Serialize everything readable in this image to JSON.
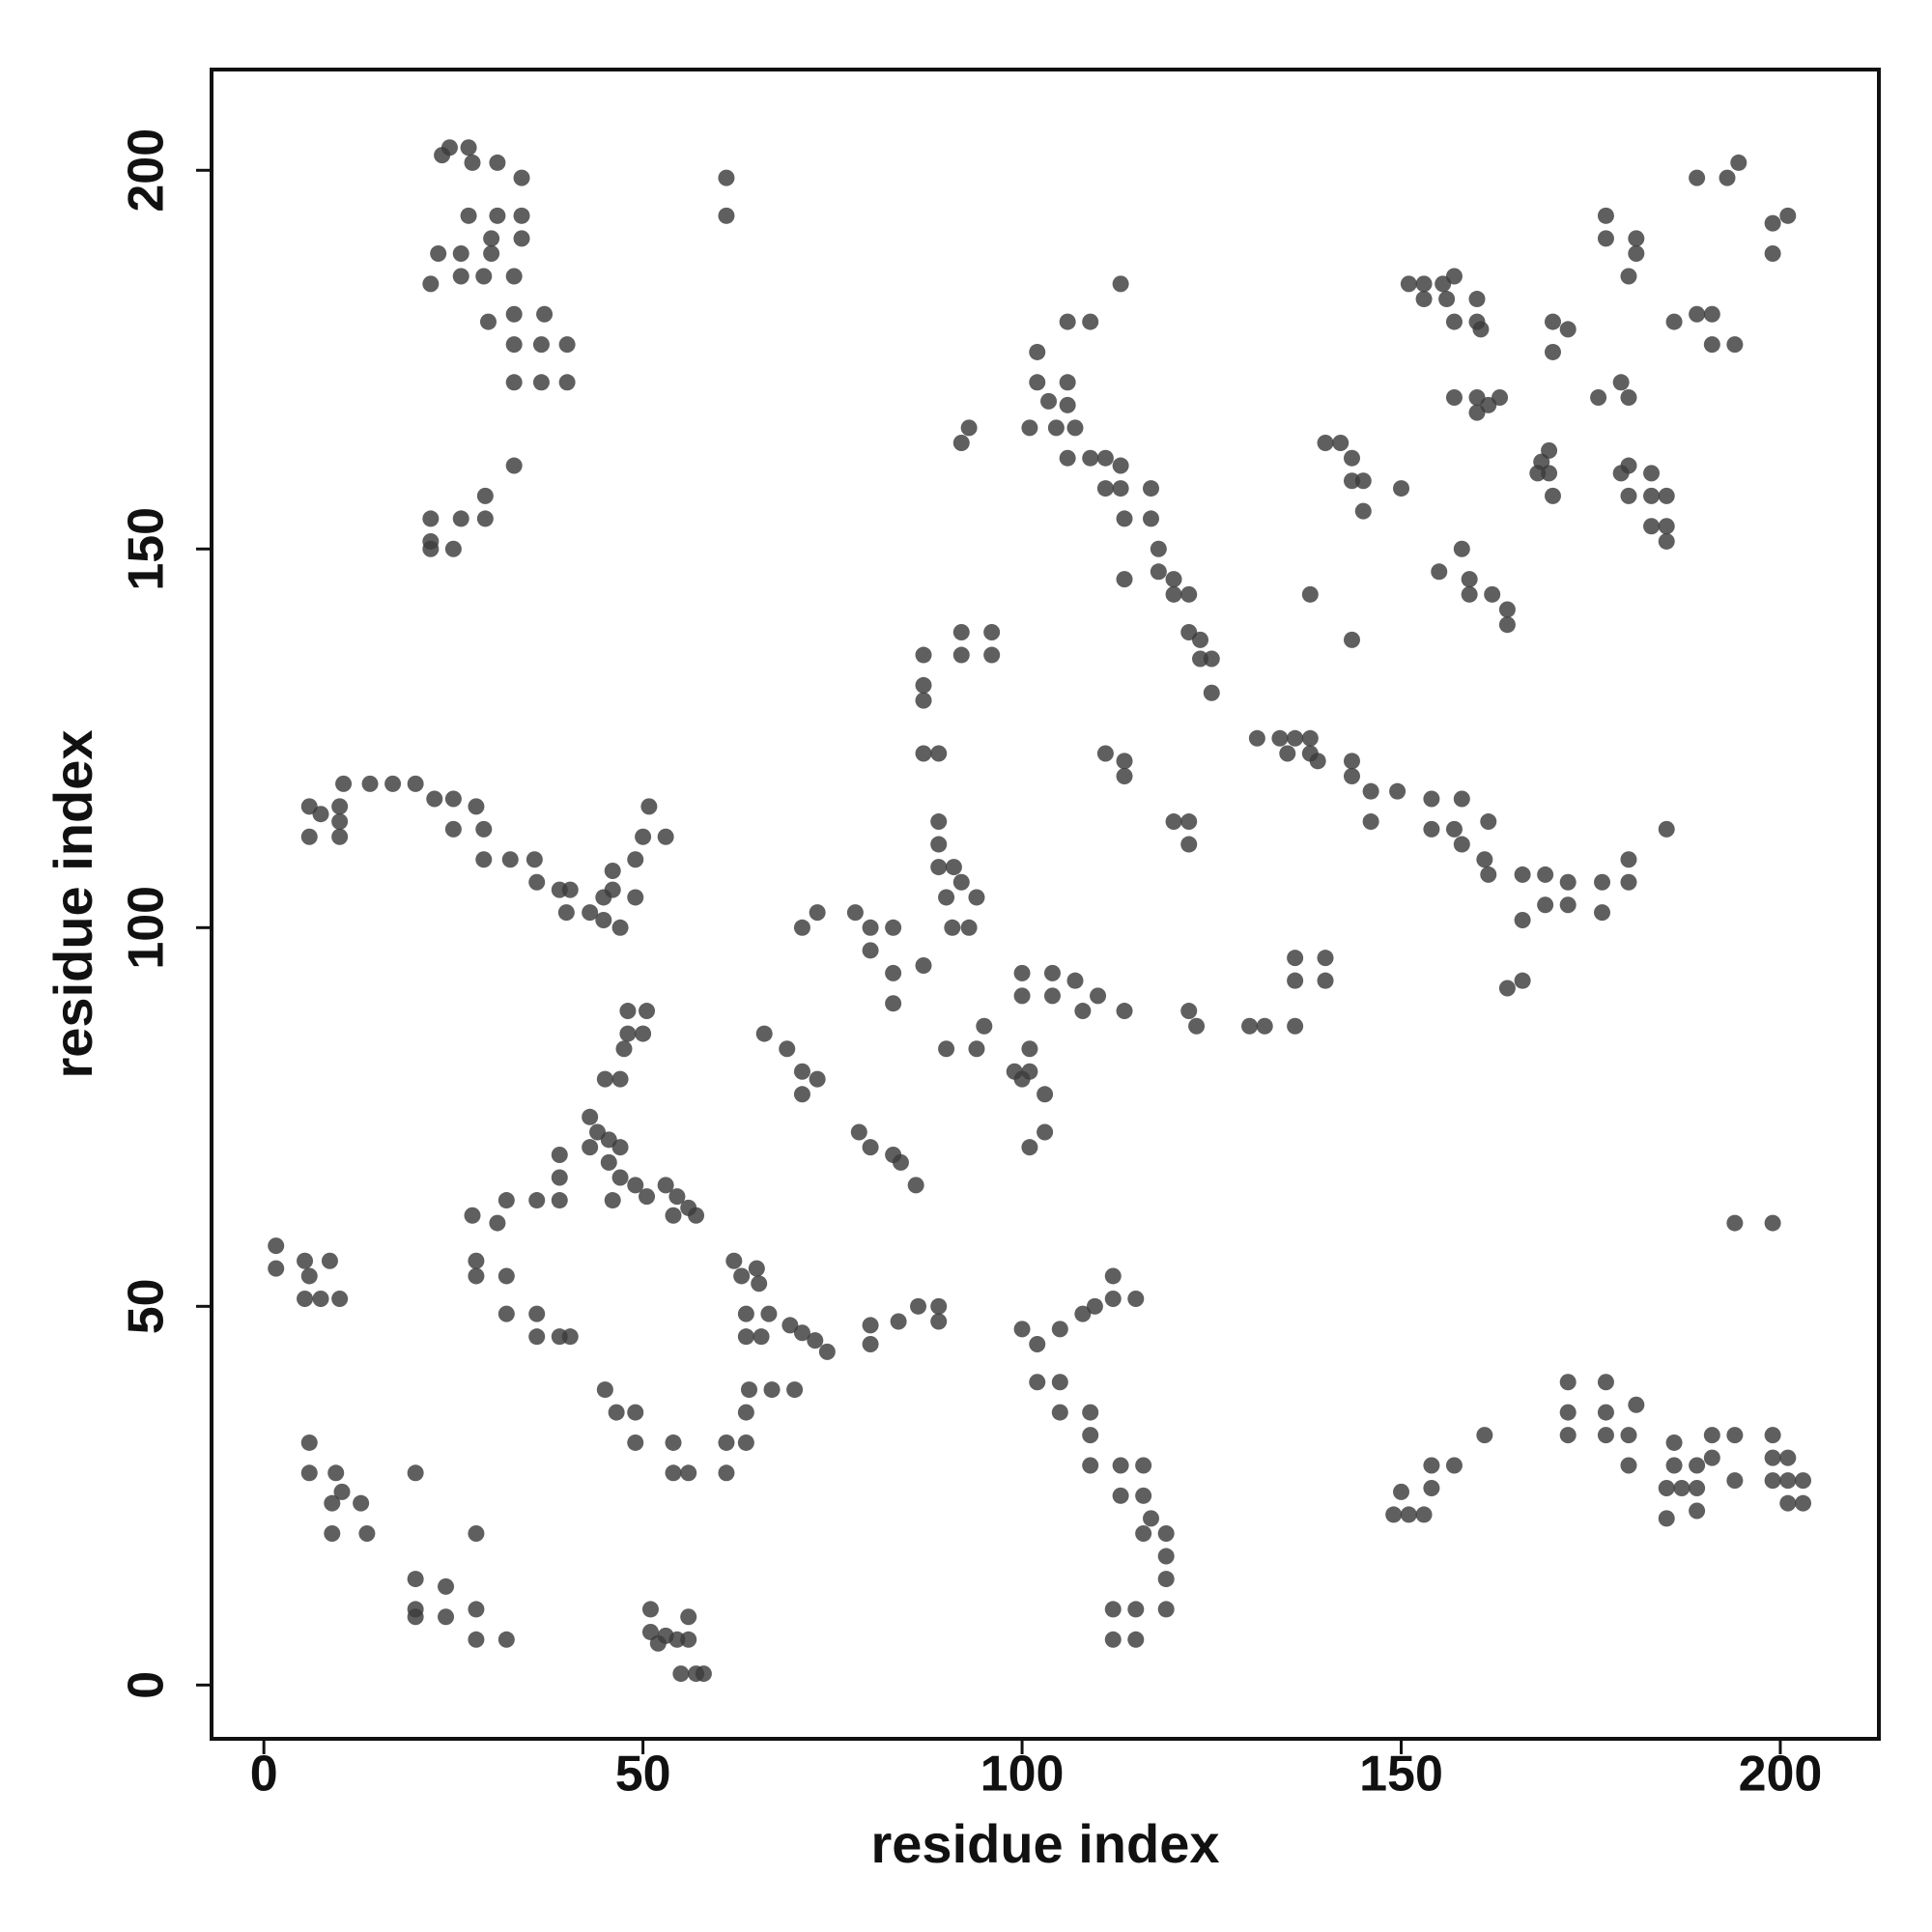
{
  "chart_data": {
    "type": "scatter",
    "xlabel": "residue index",
    "ylabel": "residue index",
    "xlim": [
      -6.9,
      213
    ],
    "ylim": [
      -7.1,
      213.3
    ],
    "xticks": [
      0,
      50,
      100,
      150,
      200
    ],
    "yticks": [
      0,
      50,
      100,
      150,
      200
    ],
    "series": [
      {
        "color": "#3c3c3c",
        "x": [
          23.5,
          24.5,
          27,
          27.5,
          30.8,
          34,
          23,
          26,
          30,
          26,
          29,
          33,
          22,
          27,
          30.8,
          34,
          30,
          34,
          29.6,
          33,
          37,
          33,
          36.6,
          40,
          33,
          36.6,
          40,
          33,
          29.2,
          22,
          26,
          29.2,
          22,
          25,
          22,
          61,
          61,
          189,
          193,
          194.5,
          199,
          201,
          199,
          177,
          177,
          181,
          181,
          180,
          186,
          189,
          191,
          191,
          194,
          151,
          153,
          155.5,
          157,
          153,
          156,
          160,
          157,
          160,
          160.5,
          157,
          160,
          163,
          160,
          161.5,
          170,
          172,
          170,
          176,
          179,
          180,
          169.5,
          169.5,
          168,
          170,
          168.5,
          179,
          180,
          180,
          183,
          183,
          185,
          183,
          185,
          185,
          140,
          142,
          143.5,
          143.5,
          145,
          145,
          150,
          155,
          158,
          159,
          159,
          162,
          164,
          164,
          138,
          143.5,
          102,
          106,
          109,
          102,
          106,
          103.5,
          106,
          101,
          104.5,
          107,
          93,
          92,
          106,
          109,
          111,
          113,
          111,
          113,
          117,
          113.5,
          117,
          113.5,
          118,
          118,
          120,
          120,
          122,
          122,
          123.5,
          123.5,
          125,
          125,
          113,
          92,
          96,
          92,
          96,
          87,
          87,
          87,
          87,
          89,
          131,
          134,
          136,
          138,
          135,
          138,
          139,
          143.5,
          143.5,
          146,
          149.5,
          146,
          154,
          158,
          154,
          157,
          158,
          161.5,
          161,
          161.5,
          166,
          166,
          169,
          172,
          169,
          172,
          176.5,
          176.5,
          180,
          180,
          185,
          164,
          166,
          111,
          113.5,
          113.5,
          122,
          122,
          120,
          89,
          89,
          89,
          91,
          90,
          92,
          94,
          93,
          90.8,
          78,
          80,
          83,
          71,
          73,
          83,
          87,
          83,
          80,
          100,
          104,
          107,
          110,
          113.5,
          100,
          104,
          108,
          122,
          123,
          130,
          132,
          136,
          136,
          140,
          136,
          140,
          90,
          95,
          94,
          99,
          101,
          103,
          101,
          103,
          101,
          100,
          66,
          69,
          71,
          73,
          71,
          78.5,
          80,
          83,
          84,
          86,
          6,
          7.5,
          10,
          10,
          6,
          10,
          10.5,
          14,
          17,
          20,
          22.5,
          25,
          28,
          25,
          29,
          29,
          32.5,
          35.7,
          36,
          39,
          40.4,
          39.9,
          43,
          44.8,
          44.8,
          47,
          46,
          49,
          46,
          49,
          50,
          53,
          50.8,
          48,
          50.5,
          48,
          50,
          45,
          47,
          47.5,
          43,
          44,
          45.5,
          47,
          43,
          45.5,
          47,
          49,
          50.5,
          46,
          53,
          54.5,
          56,
          54,
          57,
          27.5,
          30.8,
          32,
          36,
          39,
          39,
          39,
          28,
          28,
          32,
          32,
          36,
          36,
          39,
          40.4,
          1.6,
          1.6,
          5.4,
          5.4,
          7.5,
          8.7,
          10,
          6,
          62,
          63,
          65,
          65.3,
          63.6,
          66.6,
          69.4,
          71,
          72.7,
          74.3,
          63.6,
          65.6,
          80,
          80,
          83.7,
          86.3,
          89,
          89,
          100,
          102,
          105,
          108,
          109.6,
          112,
          115,
          112,
          102,
          105,
          105,
          109,
          109,
          109,
          113,
          116,
          113,
          116,
          117,
          116,
          119,
          119,
          119,
          119,
          112,
          115,
          112,
          115,
          6,
          6,
          9.5,
          10.3,
          9,
          12.8,
          9,
          13.6,
          20,
          20,
          20,
          20,
          24,
          24,
          28,
          28,
          32,
          28,
          45,
          46.5,
          49,
          49,
          54,
          54,
          56,
          61,
          61,
          63.6,
          63.6,
          64,
          67,
          70,
          51,
          51,
          53,
          54.5,
          56,
          56,
          55,
          57,
          58,
          52,
          149,
          151,
          153,
          150,
          154,
          154,
          157,
          161,
          172,
          177,
          172,
          177,
          177,
          172,
          180,
          181,
          180,
          185,
          187,
          189,
          185,
          189,
          186,
          189,
          186,
          191,
          191,
          194,
          194,
          199,
          199,
          201,
          199,
          201,
          203,
          201,
          203,
          194,
          199
        ],
        "values": [
          202,
          203,
          203,
          201,
          201,
          199,
          189,
          189,
          189,
          186,
          186,
          186,
          185,
          194,
          194,
          194,
          191,
          191,
          180,
          181,
          181,
          177,
          177,
          177,
          172,
          172,
          172,
          161,
          157,
          154,
          154,
          154,
          150,
          150,
          151,
          199,
          194,
          199,
          199,
          201,
          193,
          194,
          189,
          194,
          191,
          191,
          189,
          186,
          180,
          181,
          181,
          177,
          177,
          185,
          185,
          185,
          186,
          183,
          183,
          183,
          180,
          180,
          179,
          170,
          170,
          170,
          168,
          169,
          180,
          179,
          176,
          170,
          172,
          170,
          163,
          160,
          160,
          157,
          161.5,
          160,
          161,
          157,
          160,
          157,
          157,
          153,
          153,
          151,
          164,
          164,
          162,
          159,
          159,
          155,
          158,
          147,
          150,
          146,
          144,
          144,
          142,
          140,
          144,
          138,
          176,
          180,
          180,
          172,
          172,
          169.5,
          169,
          166,
          166,
          166,
          166,
          164,
          162,
          162,
          162,
          161,
          158,
          158,
          158,
          154,
          154,
          146,
          150,
          147,
          146,
          144,
          144,
          139,
          138,
          135.5,
          135.5,
          131,
          185,
          139,
          139,
          136,
          136,
          136,
          132,
          130,
          123,
          123,
          125,
          125,
          125,
          125,
          123,
          123,
          122,
          122,
          120,
          118,
          118,
          114,
          117,
          117,
          113,
          113,
          111,
          114,
          109,
          107,
          107,
          101,
          107,
          106,
          103,
          103,
          106,
          102,
          109,
          106,
          113,
          92,
          93,
          123,
          122,
          120,
          114,
          111,
          114,
          114,
          111,
          108,
          108,
          104,
          106,
          104,
          100,
          100,
          102,
          100,
          100,
          100,
          102,
          94,
          95,
          90,
          97,
          94,
          94,
          93,
          91,
          89,
          91,
          91,
          89,
          89,
          87,
          87,
          87,
          87,
          96,
          96,
          93,
          93,
          84,
          87,
          84,
          81,
          81,
          78,
          71,
          73,
          84,
          80,
          86,
          84,
          81,
          80,
          78,
          73,
          71,
          70,
          69,
          66,
          116,
          115,
          116,
          114,
          112,
          112,
          119,
          119,
          119,
          119,
          117,
          117,
          116,
          113,
          113,
          109,
          109,
          109,
          106,
          105,
          105,
          102,
          102,
          104,
          101,
          100,
          105,
          104,
          107.5,
          109,
          112,
          112,
          116,
          89,
          89,
          86,
          86,
          80,
          80,
          84,
          75,
          73,
          72,
          71,
          71,
          69,
          67,
          66,
          64.5,
          64,
          66,
          64.5,
          63,
          62,
          62,
          62,
          61,
          64,
          64,
          64,
          70,
          67,
          56,
          54,
          54,
          49,
          49,
          46,
          46,
          46,
          58,
          55,
          56,
          51,
          51,
          56,
          51,
          54,
          56,
          54,
          55,
          53,
          49,
          49,
          47.5,
          46.5,
          45.5,
          44,
          46,
          46,
          47.5,
          45,
          48,
          50,
          50,
          48,
          47,
          45,
          47,
          49,
          50,
          51,
          51,
          54,
          40,
          40,
          36,
          36,
          33,
          29,
          29,
          29,
          25,
          25,
          22,
          20,
          20,
          17,
          14,
          10,
          10,
          10,
          6,
          6,
          32,
          28,
          28,
          25.5,
          24,
          24,
          20,
          20,
          28,
          14,
          10,
          9,
          13,
          9,
          10,
          6,
          6,
          20,
          39,
          36,
          36,
          32,
          32,
          28,
          28,
          32,
          28,
          32,
          36,
          39,
          39,
          39,
          10,
          7,
          6.5,
          6,
          6,
          9,
          1.5,
          1.5,
          1.5,
          5.5,
          22.5,
          22.5,
          22.5,
          25.5,
          26,
          29,
          29,
          33,
          40,
          40,
          36,
          36,
          33,
          33,
          33,
          37,
          29,
          26,
          26,
          26,
          22,
          23,
          29,
          29,
          32,
          30,
          33,
          33,
          27,
          33,
          30,
          30,
          27,
          27,
          27,
          24,
          24,
          61,
          61
        ]
      }
    ]
  }
}
